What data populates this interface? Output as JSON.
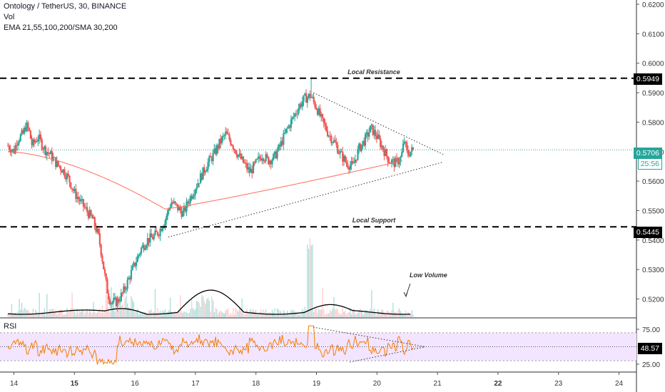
{
  "header": {
    "title": "Ontology / TetherUS, 30, BINANCE",
    "vol_label": "Vol",
    "ma_label": "EMA 21,55,100,200/SMA 30,200"
  },
  "rsi_label": "RSI",
  "price_tags": {
    "resistance": "0.5949",
    "last": "0.5706",
    "countdown": "25:56",
    "support": "0.5445",
    "rsi_value": "48.57"
  },
  "colors": {
    "up": "#26a69a",
    "down": "#ef5350",
    "ma": "#ff6d5a",
    "rsi_line": "#f57c00",
    "rsi_band": "#f3e5ff",
    "accent": "#26a69a"
  },
  "chart_data": [
    {
      "type": "candlestick",
      "title": "Ontology / TetherUS, 30, BINANCE",
      "ylim": [
        0.5185,
        0.6215
      ],
      "y_ticks": [
        "0.6200",
        "0.6100",
        "0.6000",
        "0.5900",
        "0.5800",
        "0.5700",
        "0.5600",
        "0.5500",
        "0.5400",
        "0.5300",
        "0.5200"
      ],
      "x_ticks": [
        "14",
        "15",
        "16",
        "17",
        "18",
        "19",
        "20",
        "21",
        "22",
        "23",
        "24"
      ],
      "price_path": [
        [
          13.9,
          0.572
        ],
        [
          14.0,
          0.57
        ],
        [
          14.05,
          0.574
        ],
        [
          14.1,
          0.575
        ],
        [
          14.15,
          0.576
        ],
        [
          14.2,
          0.579
        ],
        [
          14.25,
          0.577
        ],
        [
          14.3,
          0.572
        ],
        [
          14.4,
          0.575
        ],
        [
          14.5,
          0.571
        ],
        [
          14.6,
          0.569
        ],
        [
          14.7,
          0.566
        ],
        [
          14.8,
          0.564
        ],
        [
          14.9,
          0.561
        ],
        [
          15.0,
          0.556
        ],
        [
          15.1,
          0.553
        ],
        [
          15.2,
          0.55
        ],
        [
          15.3,
          0.547
        ],
        [
          15.4,
          0.541
        ],
        [
          15.45,
          0.535
        ],
        [
          15.5,
          0.528
        ],
        [
          15.55,
          0.522
        ],
        [
          15.6,
          0.519
        ],
        [
          15.7,
          0.519
        ],
        [
          15.8,
          0.522
        ],
        [
          15.9,
          0.527
        ],
        [
          16.0,
          0.532
        ],
        [
          16.1,
          0.537
        ],
        [
          16.2,
          0.54
        ],
        [
          16.3,
          0.541
        ],
        [
          16.4,
          0.543
        ],
        [
          16.5,
          0.547
        ],
        [
          16.6,
          0.553
        ],
        [
          16.7,
          0.551
        ],
        [
          16.8,
          0.549
        ],
        [
          16.9,
          0.554
        ],
        [
          17.0,
          0.558
        ],
        [
          17.1,
          0.562
        ],
        [
          17.2,
          0.566
        ],
        [
          17.3,
          0.569
        ],
        [
          17.4,
          0.573
        ],
        [
          17.5,
          0.576
        ],
        [
          17.6,
          0.573
        ],
        [
          17.7,
          0.569
        ],
        [
          17.8,
          0.566
        ],
        [
          17.9,
          0.563
        ],
        [
          18.0,
          0.566
        ],
        [
          18.1,
          0.569
        ],
        [
          18.2,
          0.567
        ],
        [
          18.3,
          0.568
        ],
        [
          18.4,
          0.572
        ],
        [
          18.5,
          0.577
        ],
        [
          18.6,
          0.581
        ],
        [
          18.7,
          0.585
        ],
        [
          18.8,
          0.588
        ],
        [
          18.9,
          0.589
        ],
        [
          19.0,
          0.585
        ],
        [
          19.1,
          0.58
        ],
        [
          19.2,
          0.576
        ],
        [
          19.3,
          0.573
        ],
        [
          19.4,
          0.569
        ],
        [
          19.5,
          0.566
        ],
        [
          19.6,
          0.565
        ],
        [
          19.7,
          0.571
        ],
        [
          19.8,
          0.574
        ],
        [
          19.9,
          0.578
        ],
        [
          20.0,
          0.575
        ],
        [
          20.1,
          0.571
        ],
        [
          20.2,
          0.567
        ],
        [
          20.3,
          0.566
        ],
        [
          20.4,
          0.568
        ],
        [
          20.45,
          0.574
        ],
        [
          20.5,
          0.569
        ],
        [
          20.55,
          0.57
        ],
        [
          20.6,
          0.5706
        ]
      ],
      "annotations": [
        {
          "text": "Local Resistance",
          "price": 0.5949
        },
        {
          "text": "Local Support",
          "price": 0.5445
        },
        {
          "text": "Low Volume"
        }
      ],
      "horizontal_lines": [
        0.5949,
        0.5445,
        0.5706
      ]
    },
    {
      "type": "line",
      "title": "RSI",
      "ylim": [
        15,
        88
      ],
      "y_ticks": [
        "75.00",
        "25.00"
      ],
      "band": [
        30,
        70
      ],
      "midline": 50,
      "last_value": 48.57
    }
  ]
}
